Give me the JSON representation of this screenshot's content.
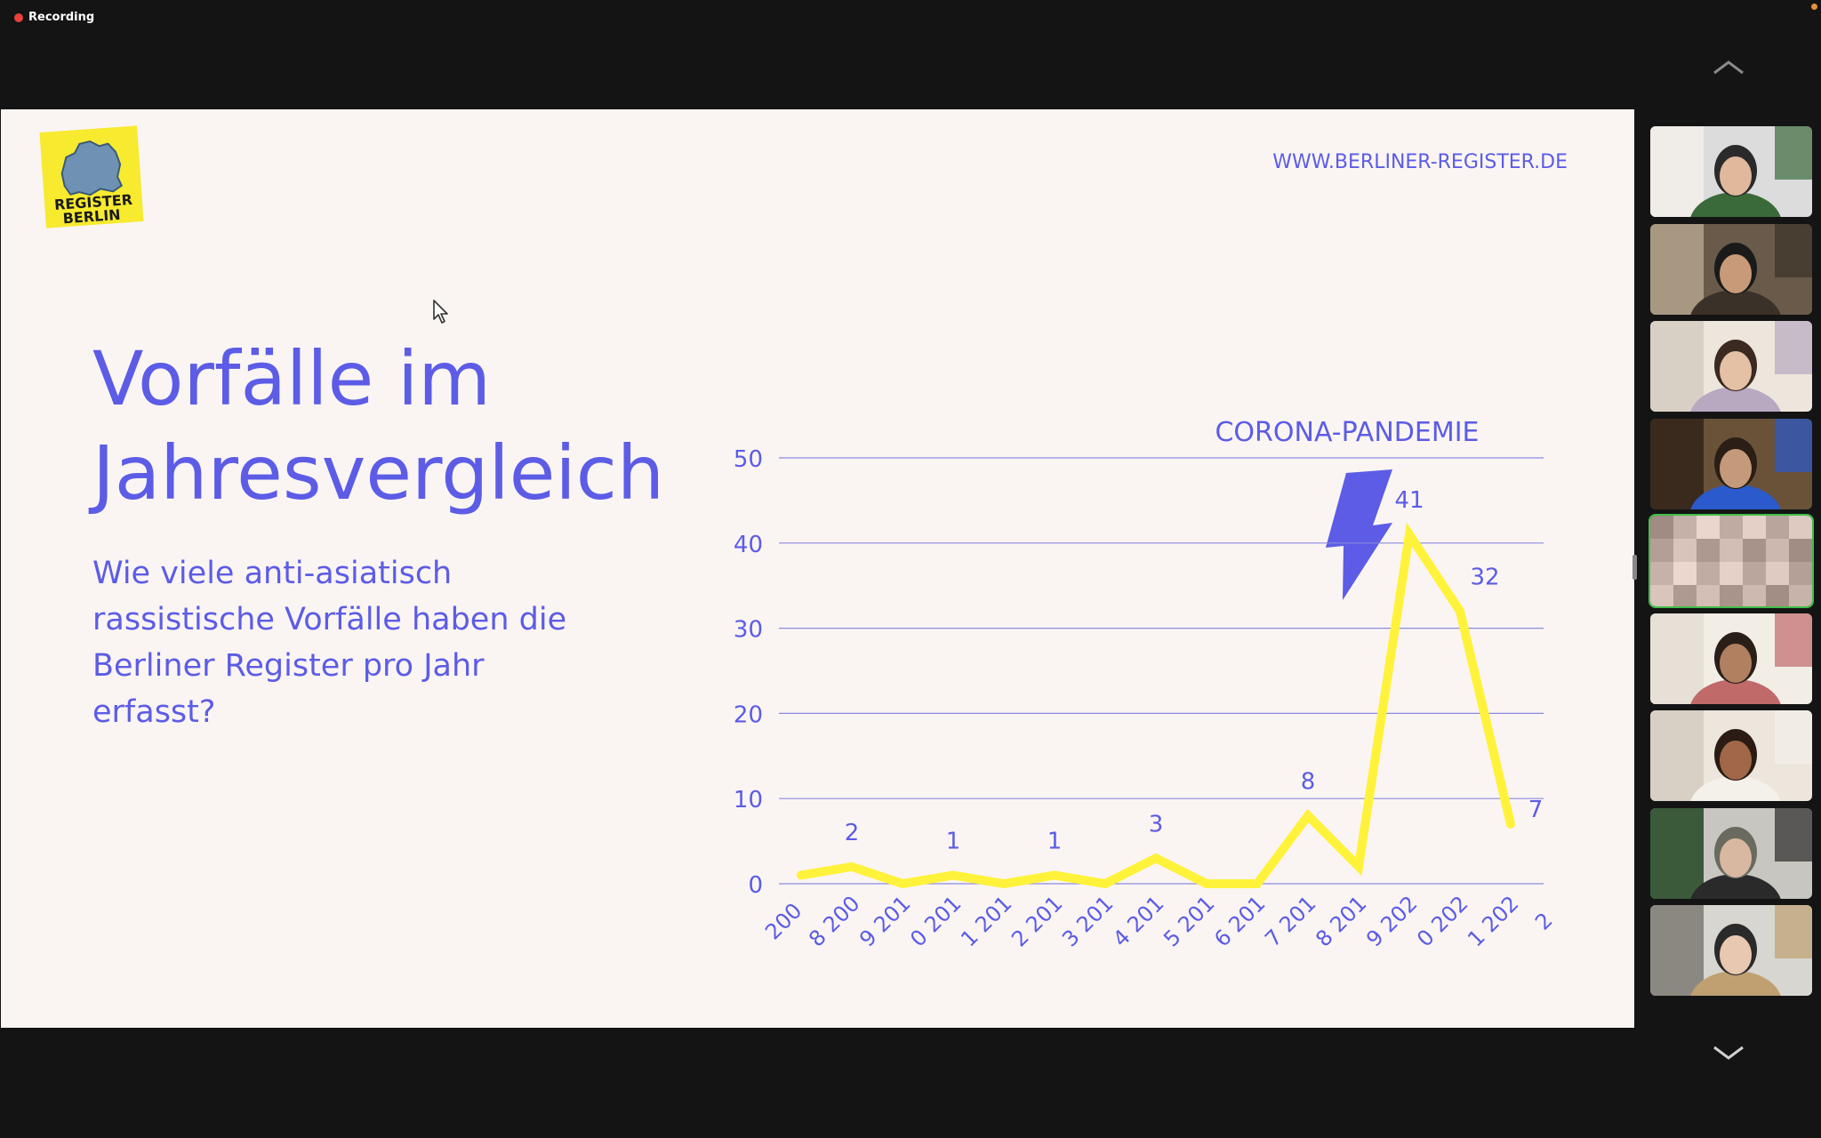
{
  "meeting": {
    "recording_label": "Recording",
    "colors": {
      "background": "#141414",
      "recording_dot": "#e8413a",
      "active_speaker": "#3fbf4a"
    }
  },
  "slide": {
    "logo_text": "REGISTER BERLIN",
    "url": "WWW.BERLINER-REGISTER.DE",
    "title_line1": "Vorfälle im",
    "title_line2": "Jahresvergleich",
    "subtitle": "Wie viele anti-asiatisch rassistische Vorfälle haben die Berliner Register pro Jahr erfasst?",
    "colors": {
      "background": "#faf5f3",
      "text": "#5c5ce6",
      "line": "#fff23a",
      "logo_bg": "#f7ea2f"
    }
  },
  "chart_data": {
    "type": "line",
    "annotation": "CORONA-PANDEMIE",
    "x": [
      2008,
      2009,
      2010,
      2011,
      2012,
      2013,
      2014,
      2015,
      2016,
      2017,
      2018,
      2019,
      2020,
      2021,
      2022
    ],
    "x_tick_line1": [
      "200",
      "8 200",
      "9 201",
      "0 201",
      "1 201",
      "2 201",
      "3 201",
      "4 201",
      "5 201",
      "6 201",
      "7 201",
      "8 201",
      "9 202",
      "0 202",
      "1 202"
    ],
    "x_tick_line2": [
      "8",
      "9",
      "0",
      "1",
      "2",
      "3",
      "4",
      "5",
      "6",
      "7",
      "8",
      "9",
      "0",
      "1",
      "2"
    ],
    "x_tick_labels_drawn": [
      "200",
      "8 200",
      "9 201",
      "0 201",
      "1 201",
      "2 201",
      "3 201",
      "4 201",
      "5 201",
      "6 201",
      "7 201",
      "8 201",
      "9 202",
      "0 202",
      "1 202",
      "2"
    ],
    "series": [
      {
        "values": [
          1,
          2,
          0,
          1,
          0,
          1,
          0,
          3,
          0,
          0,
          8,
          2,
          41,
          32,
          7
        ]
      }
    ],
    "data_labels": [
      {
        "index": 1,
        "text": "2"
      },
      {
        "index": 3,
        "text": "1"
      },
      {
        "index": 5,
        "text": "1"
      },
      {
        "index": 7,
        "text": "3"
      },
      {
        "index": 10,
        "text": "8"
      },
      {
        "index": 12,
        "text": "41"
      },
      {
        "index": 13,
        "text": "32"
      },
      {
        "index": 14,
        "text": "7"
      }
    ],
    "yticks": [
      0,
      10,
      20,
      30,
      40,
      50
    ],
    "ylim": [
      0,
      50
    ],
    "grid": true,
    "line_color": "#fff23a",
    "text_color": "#5c5ce6",
    "grid_color": "#8a8ae0",
    "lightning_color": "#5c5ce6"
  },
  "sidebar": {
    "participants": [
      {
        "name": "participant-1",
        "colors": [
          "#dcdcdc",
          "#f0ece8",
          "#2a2a2a",
          "#e0b89c",
          "#3a6a3a"
        ]
      },
      {
        "name": "participant-2",
        "colors": [
          "#6a5a4a",
          "#a89882",
          "#1a1a1a",
          "#c89a78",
          "#3a3228"
        ]
      },
      {
        "name": "participant-3",
        "colors": [
          "#ece6dc",
          "#d8d0c4",
          "#3a2a22",
          "#e4c0a4",
          "#b8a8c0"
        ]
      },
      {
        "name": "participant-4",
        "colors": [
          "#6a5238",
          "#3a2a1e",
          "#2a1e16",
          "#c49a7a",
          "#2a5acc"
        ]
      },
      {
        "name": "participant-5",
        "colors": [
          "#8a8a8a",
          "#a59080",
          "#c09a80",
          "#d6b49a",
          "#5a5a5a"
        ]
      },
      {
        "name": "participant-6",
        "colors": [
          "#f2eee6",
          "#e6e0d6",
          "#2a1e18",
          "#b08060",
          "#c06a6a"
        ]
      },
      {
        "name": "participant-7",
        "colors": [
          "#ece6dc",
          "#d8d0c4",
          "#2a1c14",
          "#a06848",
          "#f4f0ea"
        ]
      },
      {
        "name": "participant-8",
        "colors": [
          "#c8c6c0",
          "#3a5a3a",
          "#6a6a60",
          "#d8b8a0",
          "#2a2a2a"
        ]
      },
      {
        "name": "participant-9",
        "colors": [
          "#d8d6d0",
          "#8a8880",
          "#2a2a2a",
          "#e8c8b0",
          "#c0a070"
        ]
      }
    ],
    "active_index": 4
  }
}
